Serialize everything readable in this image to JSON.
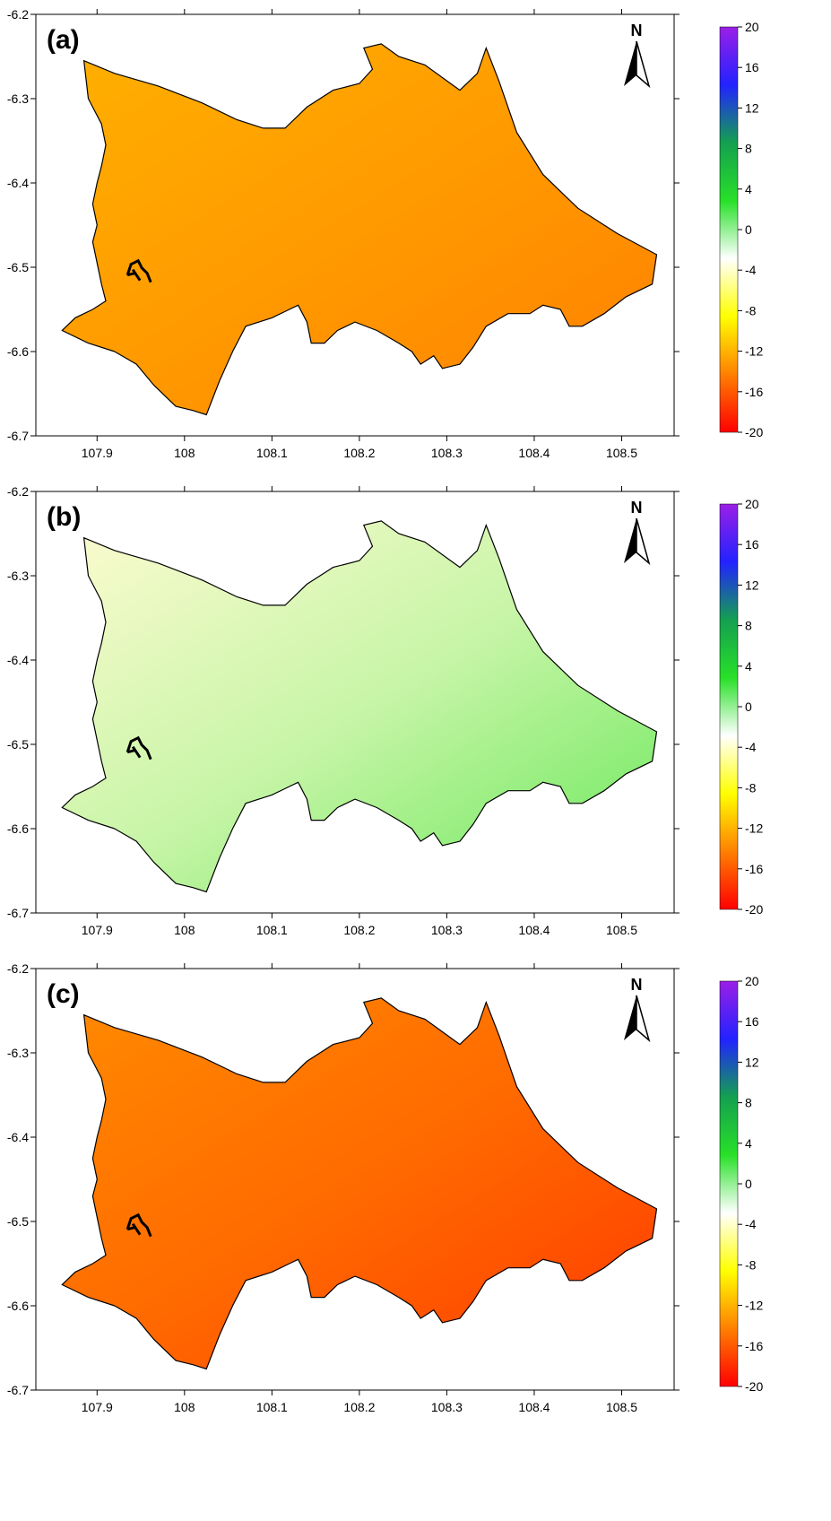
{
  "colorbar": {
    "ticks": [
      "20",
      "16",
      "12",
      "8",
      "4",
      "0",
      "-4",
      "-8",
      "-12",
      "-16",
      "-20"
    ],
    "colors": [
      "#9b1fe6",
      "#2222ff",
      "#14a050",
      "#28e028",
      "#ffffff",
      "#ffff00",
      "#ff8000",
      "#ff0000"
    ]
  },
  "axes": {
    "x_ticks": [
      "107.9",
      "108",
      "108.1",
      "108.2",
      "108.3",
      "108.4",
      "108.5"
    ],
    "y_ticks": [
      "-6.2",
      "-6.3",
      "-6.4",
      "-6.5",
      "-6.6",
      "-6.7"
    ]
  },
  "north": "N",
  "panels": [
    {
      "label": "(a)",
      "fill_colors": [
        "#ffb000",
        "#ff9a00",
        "#ff8000"
      ]
    },
    {
      "label": "(b)",
      "fill_colors": [
        "#fdfbd0",
        "#c8f5a8",
        "#6ae85a"
      ]
    },
    {
      "label": "(c)",
      "fill_colors": [
        "#ff8a00",
        "#ff6a00",
        "#ff3a00"
      ]
    }
  ]
}
